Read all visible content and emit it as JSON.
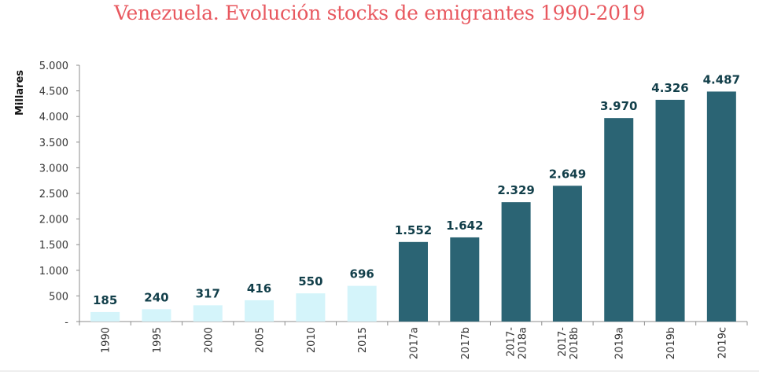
{
  "chart_data": {
    "type": "bar",
    "title": "Venezuela. Evolución stocks de emigrantes 1990-2019",
    "xlabel": "",
    "ylabel": "Millares",
    "ylim": [
      0,
      5000
    ],
    "yticks": [
      0,
      500,
      1000,
      1500,
      2000,
      2500,
      3000,
      3500,
      4000,
      4500,
      5000
    ],
    "ytick_labels": [
      "-",
      "500",
      "1.000",
      "1.500",
      "2.000",
      "2.500",
      "3.000",
      "3.500",
      "4.000",
      "4.500",
      "5.000"
    ],
    "categories": [
      "1990",
      "1995",
      "2000",
      "2005",
      "2010",
      "2015",
      "2017a",
      "2017b",
      "2017-2018a",
      "2017-2018b",
      "2019a",
      "2019b",
      "2019c"
    ],
    "category_label_lines": [
      [
        "1990"
      ],
      [
        "1995"
      ],
      [
        "2000"
      ],
      [
        "2005"
      ],
      [
        "2010"
      ],
      [
        "2015"
      ],
      [
        "2017a"
      ],
      [
        "2017b"
      ],
      [
        "2017-",
        "2018a"
      ],
      [
        "2017-",
        "2018b"
      ],
      [
        "2019a"
      ],
      [
        "2019b"
      ],
      [
        "2019c"
      ]
    ],
    "values": [
      185,
      240,
      317,
      416,
      550,
      696,
      1552,
      1642,
      2329,
      2649,
      3970,
      4326,
      4487
    ],
    "data_labels": [
      "185",
      "240",
      "317",
      "416",
      "550",
      "696",
      "1.552",
      "1.642",
      "2.329",
      "2.649",
      "3.970",
      "4.326",
      "4.487"
    ],
    "bar_color_groups": [
      "light",
      "light",
      "light",
      "light",
      "light",
      "light",
      "dark",
      "dark",
      "dark",
      "dark",
      "dark",
      "dark",
      "dark"
    ],
    "colors": {
      "light": "#d4f4fa",
      "dark": "#2b6474",
      "title": "#e8585f",
      "data_label": "#123f4a"
    },
    "grid": false,
    "legend": "none"
  }
}
